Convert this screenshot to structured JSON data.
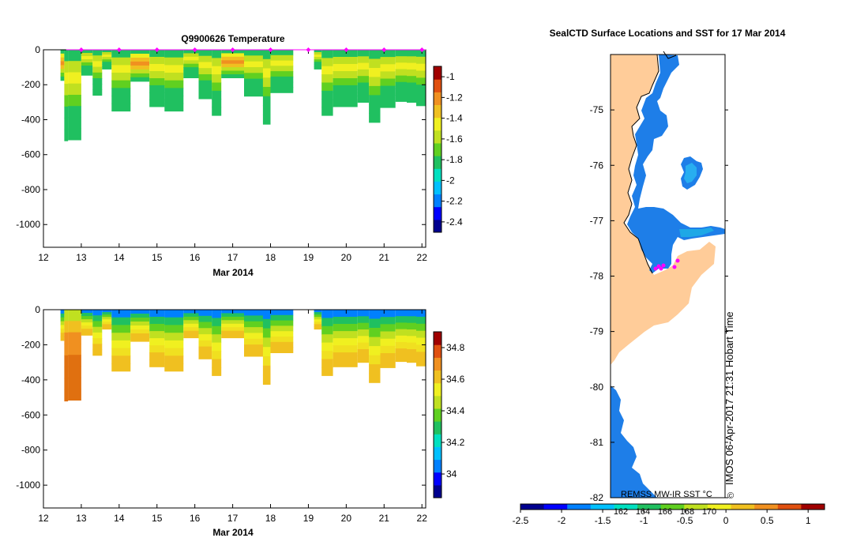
{
  "colors": {
    "land": "#ffcc99",
    "ocean": "#1e7ee8",
    "ocean_light": "#28aef0",
    "marker": "#ff00ff",
    "axis": "#000000"
  },
  "colormap": [
    "#00008f",
    "#0000ff",
    "#0080ff",
    "#00c0ff",
    "#00e0c0",
    "#20c060",
    "#60d020",
    "#c0e020",
    "#f0f020",
    "#f0c020",
    "#f09020",
    "#e05010",
    "#a00000"
  ],
  "chart_data": [
    {
      "type": "heatmap",
      "name": "temperature-section",
      "title": "Q9900626  Temperature",
      "xlabel": "Mar 2014",
      "ylabel": "",
      "xlim": [
        12,
        22.1
      ],
      "ylim": [
        -1130,
        0
      ],
      "xticks": [
        12,
        13,
        14,
        15,
        16,
        17,
        18,
        19,
        20,
        21,
        22
      ],
      "yticks": [
        0,
        -200,
        -400,
        -600,
        -800,
        -1000
      ],
      "colorbar": {
        "min": -2.5,
        "max": -0.9,
        "ticks": [
          -1,
          -1.2,
          -1.4,
          -1.6,
          -1.8,
          -2,
          -2.2,
          -2.4
        ]
      },
      "profile_markers_x": [
        13.0,
        14.0,
        15.0,
        16.0,
        17.0,
        18.0,
        19.0,
        20.0,
        21.0,
        22.0
      ],
      "profiles": [
        {
          "t0": 12.45,
          "t1": 12.55,
          "depth": -175,
          "pattern": "warm"
        },
        {
          "t0": 12.55,
          "t1": 12.65,
          "depth": -520,
          "pattern": "std"
        },
        {
          "t0": 12.65,
          "t1": 13.0,
          "depth": -515,
          "pattern": "std"
        },
        {
          "t0": 13.0,
          "t1": 13.3,
          "depth": -145,
          "pattern": "std"
        },
        {
          "t0": 13.3,
          "t1": 13.55,
          "depth": -260,
          "pattern": "std"
        },
        {
          "t0": 13.55,
          "t1": 13.8,
          "depth": -110,
          "pattern": "std"
        },
        {
          "t0": 13.8,
          "t1": 14.3,
          "depth": -350,
          "pattern": "std"
        },
        {
          "t0": 14.3,
          "t1": 14.8,
          "depth": -180,
          "pattern": "warm"
        },
        {
          "t0": 14.8,
          "t1": 15.2,
          "depth": -325,
          "pattern": "std"
        },
        {
          "t0": 15.2,
          "t1": 15.7,
          "depth": -350,
          "pattern": "std"
        },
        {
          "t0": 15.7,
          "t1": 16.1,
          "depth": -160,
          "pattern": "std"
        },
        {
          "t0": 16.1,
          "t1": 16.45,
          "depth": -280,
          "pattern": "std"
        },
        {
          "t0": 16.45,
          "t1": 16.7,
          "depth": -375,
          "pattern": "std"
        },
        {
          "t0": 16.7,
          "t1": 17.3,
          "depth": -160,
          "pattern": "warm"
        },
        {
          "t0": 17.3,
          "t1": 17.8,
          "depth": -265,
          "pattern": "std"
        },
        {
          "t0": 17.8,
          "t1": 18.0,
          "depth": -425,
          "pattern": "std"
        },
        {
          "t0": 18.0,
          "t1": 18.6,
          "depth": -245,
          "pattern": "std"
        },
        {
          "t0": 19.15,
          "t1": 19.35,
          "depth": -110,
          "pattern": "std"
        },
        {
          "t0": 19.35,
          "t1": 19.65,
          "depth": -375,
          "pattern": "std"
        },
        {
          "t0": 19.65,
          "t1": 20.3,
          "depth": -325,
          "pattern": "std"
        },
        {
          "t0": 20.3,
          "t1": 20.6,
          "depth": -300,
          "pattern": "std"
        },
        {
          "t0": 20.6,
          "t1": 20.9,
          "depth": -415,
          "pattern": "std"
        },
        {
          "t0": 20.9,
          "t1": 21.3,
          "depth": -330,
          "pattern": "std"
        },
        {
          "t0": 21.3,
          "t1": 21.6,
          "depth": -295,
          "pattern": "std"
        },
        {
          "t0": 21.6,
          "t1": 21.85,
          "depth": -300,
          "pattern": "std"
        },
        {
          "t0": 21.85,
          "t1": 22.1,
          "depth": -320,
          "pattern": "std"
        }
      ]
    },
    {
      "type": "heatmap",
      "name": "salinity-section",
      "title": "",
      "xlabel": "Mar 2014",
      "ylabel": "",
      "xlim": [
        12,
        22.1
      ],
      "ylim": [
        -1130,
        0
      ],
      "xticks": [
        12,
        13,
        14,
        15,
        16,
        17,
        18,
        19,
        20,
        21,
        22
      ],
      "yticks": [
        0,
        -200,
        -400,
        -600,
        -800,
        -1000
      ],
      "colorbar": {
        "min": 33.85,
        "max": 34.9,
        "ticks": [
          34.8,
          34.6,
          34.4,
          34.2,
          34
        ]
      },
      "profiles": [
        {
          "t0": 12.45,
          "t1": 12.55,
          "depth": -175,
          "pattern": "std"
        },
        {
          "t0": 12.55,
          "t1": 12.65,
          "depth": -520,
          "pattern": "deep"
        },
        {
          "t0": 12.65,
          "t1": 13.0,
          "depth": -515,
          "pattern": "deep"
        },
        {
          "t0": 13.0,
          "t1": 13.3,
          "depth": -145,
          "pattern": "std"
        },
        {
          "t0": 13.3,
          "t1": 13.55,
          "depth": -260,
          "pattern": "std"
        },
        {
          "t0": 13.55,
          "t1": 13.8,
          "depth": -110,
          "pattern": "std"
        },
        {
          "t0": 13.8,
          "t1": 14.3,
          "depth": -350,
          "pattern": "std"
        },
        {
          "t0": 14.3,
          "t1": 14.8,
          "depth": -180,
          "pattern": "std"
        },
        {
          "t0": 14.8,
          "t1": 15.2,
          "depth": -325,
          "pattern": "std"
        },
        {
          "t0": 15.2,
          "t1": 15.7,
          "depth": -350,
          "pattern": "std"
        },
        {
          "t0": 15.7,
          "t1": 16.1,
          "depth": -160,
          "pattern": "std"
        },
        {
          "t0": 16.1,
          "t1": 16.45,
          "depth": -280,
          "pattern": "std"
        },
        {
          "t0": 16.45,
          "t1": 16.7,
          "depth": -375,
          "pattern": "std"
        },
        {
          "t0": 16.7,
          "t1": 17.3,
          "depth": -160,
          "pattern": "std"
        },
        {
          "t0": 17.3,
          "t1": 17.8,
          "depth": -265,
          "pattern": "std"
        },
        {
          "t0": 17.8,
          "t1": 18.0,
          "depth": -425,
          "pattern": "std"
        },
        {
          "t0": 18.0,
          "t1": 18.6,
          "depth": -245,
          "pattern": "std"
        },
        {
          "t0": 19.15,
          "t1": 19.35,
          "depth": -110,
          "pattern": "std"
        },
        {
          "t0": 19.35,
          "t1": 19.65,
          "depth": -375,
          "pattern": "std"
        },
        {
          "t0": 19.65,
          "t1": 20.3,
          "depth": -325,
          "pattern": "std"
        },
        {
          "t0": 20.3,
          "t1": 20.6,
          "depth": -300,
          "pattern": "std"
        },
        {
          "t0": 20.6,
          "t1": 20.9,
          "depth": -415,
          "pattern": "std"
        },
        {
          "t0": 20.9,
          "t1": 21.3,
          "depth": -330,
          "pattern": "std"
        },
        {
          "t0": 21.3,
          "t1": 21.6,
          "depth": -295,
          "pattern": "std"
        },
        {
          "t0": 21.6,
          "t1": 21.85,
          "depth": -300,
          "pattern": "std"
        },
        {
          "t0": 21.85,
          "t1": 22.1,
          "depth": -320,
          "pattern": "std"
        }
      ]
    },
    {
      "type": "map",
      "name": "surface-locations-sst",
      "title": "SealCTD Surface Locations and SST for 17 Mar 2014",
      "ylim": [
        -82,
        -74
      ],
      "yticks": [
        -75,
        -76,
        -77,
        -78,
        -79,
        -80,
        -81,
        -82
      ],
      "inset_ticks": [
        "162",
        "164",
        "166",
        "168",
        "170"
      ],
      "colorbar": {
        "min": -2.5,
        "max": 1.2,
        "ticks": [
          -2.5,
          -2,
          -1.5,
          -1,
          -0.5,
          0,
          0.5,
          1
        ]
      },
      "sst_label": "REMSS MW-IR SST °C",
      "credit": "IMOS 06-Apr-2017 21:31 Hobart Time",
      "copyright": "©"
    }
  ]
}
